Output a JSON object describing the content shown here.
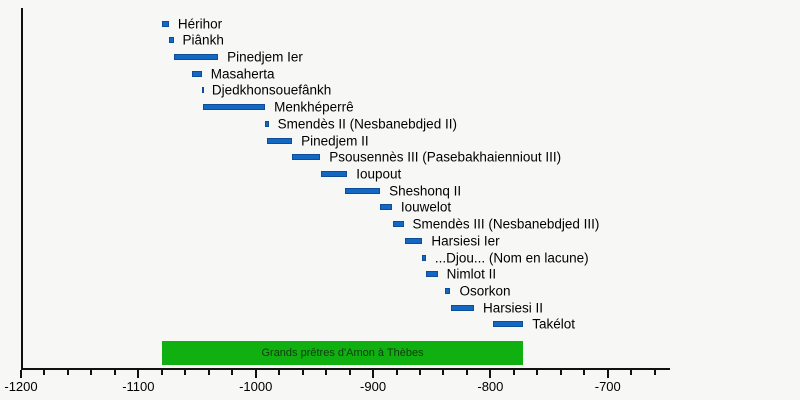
{
  "chart_data": {
    "type": "timeline",
    "title": "",
    "axis": {
      "min": -1200,
      "line_end": -647,
      "major_ticks": [
        -1200,
        -1100,
        -1000,
        -900,
        -800,
        -700
      ],
      "minor_tick_interval": 20,
      "minor_tick_min": -1200,
      "minor_tick_max": -660,
      "grid": false
    },
    "bar_color": "#1368c4",
    "bar_border_color": "#0d4d97",
    "bars": [
      {
        "label": "Hérihor",
        "start": -1080,
        "end": -1074
      },
      {
        "label": "Piânkh",
        "start": -1074,
        "end": -1070
      },
      {
        "label": "Pinedjem Ier",
        "start": -1070,
        "end": -1032
      },
      {
        "label": "Masaherta",
        "start": -1054,
        "end": -1046
      },
      {
        "label": "Djedkhonsouefânkh",
        "start": -1046,
        "end": -1045
      },
      {
        "label": "Menkhéperrê",
        "start": -1045,
        "end": -992
      },
      {
        "label": "Smendès II (Nesbanebdjed II)",
        "start": -992,
        "end": -989
      },
      {
        "label": "Pinedjem II",
        "start": -990,
        "end": -969
      },
      {
        "label": "Psousennès III (Pasebakhaienniout III)",
        "start": -969,
        "end": -945
      },
      {
        "label": "Ioupout",
        "start": -944,
        "end": -922
      },
      {
        "label": "Sheshonq II",
        "start": -924,
        "end": -894
      },
      {
        "label": "Iouwelot",
        "start": -894,
        "end": -884
      },
      {
        "label": "Smendès III (Nesbanebdjed III)",
        "start": -883,
        "end": -874
      },
      {
        "label": "Harsiesi Ier",
        "start": -873,
        "end": -858
      },
      {
        "label": "...Djou... (Nom en lacune)",
        "start": -858,
        "end": -855
      },
      {
        "label": "Nimlot II",
        "start": -855,
        "end": -845
      },
      {
        "label": "Osorkon",
        "start": -839,
        "end": -834
      },
      {
        "label": "Harsiesi II",
        "start": -834,
        "end": -814
      },
      {
        "label": "Takélot",
        "start": -798,
        "end": -772
      }
    ],
    "band": {
      "label": "Grands prêtres d'Amon à Thèbes",
      "start": -1080,
      "end": -772,
      "color": "#10b010",
      "text_color": "#123a12"
    }
  }
}
